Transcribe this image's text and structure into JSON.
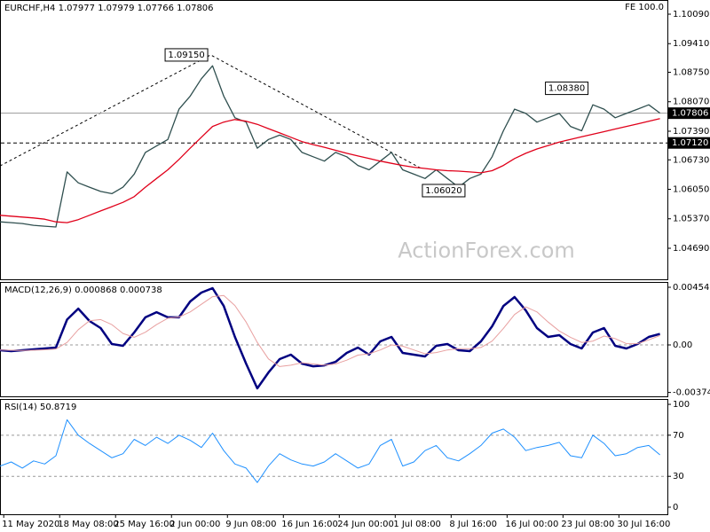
{
  "chart_data": [
    {
      "type": "line",
      "title": "EURCHF,H4 1.07977 1.07979 1.07766 1.07806",
      "subtitle": "FE 100.0",
      "watermark": "ActionForex.com",
      "xlim": [
        0,
        358
      ],
      "x": [
        0,
        6,
        12,
        18,
        24,
        30,
        36,
        42,
        48,
        54,
        60,
        66,
        72,
        78,
        84,
        90,
        96,
        102,
        108,
        114,
        120,
        126,
        132,
        138,
        144,
        150,
        156,
        162,
        168,
        174,
        180,
        186,
        192,
        198,
        204,
        210,
        216,
        222,
        228,
        234,
        240,
        246,
        252,
        258,
        264,
        270,
        276,
        282,
        288,
        294,
        300,
        306,
        312,
        318,
        324,
        330,
        336,
        342,
        348,
        354
      ],
      "ylim": [
        1.03974,
        1.10417
      ],
      "yticks": [
        {
          "value": 1.1009,
          "label": "1.10090"
        },
        {
          "value": 1.0941,
          "label": "1.09410"
        },
        {
          "value": 1.0875,
          "label": "1.08750"
        },
        {
          "value": 1.0807,
          "label": "1.08070"
        },
        {
          "value": 1.0739,
          "label": "1.07390"
        },
        {
          "value": 1.0673,
          "label": "1.06730"
        },
        {
          "value": 1.0605,
          "label": "1.06050"
        },
        {
          "value": 1.0537,
          "label": "1.05370"
        },
        {
          "value": 1.0469,
          "label": "1.04690"
        }
      ],
      "series": [
        {
          "color": "#2f4f4f",
          "values": [
            1.053,
            1.0528,
            1.0526,
            1.0522,
            1.052,
            1.0518,
            1.0645,
            1.062,
            1.061,
            1.06,
            1.0595,
            1.061,
            1.064,
            1.069,
            1.0705,
            1.072,
            1.079,
            1.082,
            1.086,
            1.089,
            1.082,
            1.077,
            1.076,
            1.07,
            1.072,
            1.073,
            1.072,
            1.069,
            1.068,
            1.067,
            1.069,
            1.068,
            1.066,
            1.065,
            1.067,
            1.069,
            1.065,
            1.064,
            1.063,
            1.065,
            1.063,
            1.061,
            1.063,
            1.064,
            1.068,
            1.074,
            1.079,
            1.078,
            1.076,
            1.077,
            1.078,
            1.075,
            1.074,
            1.08,
            1.079,
            1.077,
            1.078,
            1.079,
            1.08,
            1.0781
          ]
        },
        {
          "color": "#e0001a",
          "values": [
            1.0545,
            1.0543,
            1.0541,
            1.0539,
            1.0536,
            1.053,
            1.0528,
            1.0535,
            1.0545,
            1.0555,
            1.0565,
            1.0575,
            1.0588,
            1.061,
            1.063,
            1.065,
            1.0674,
            1.07,
            1.0725,
            1.075,
            1.076,
            1.0766,
            1.0762,
            1.0755,
            1.0745,
            1.0735,
            1.0725,
            1.0715,
            1.0708,
            1.0702,
            1.0695,
            1.0688,
            1.0682,
            1.0676,
            1.067,
            1.0665,
            1.066,
            1.0656,
            1.0653,
            1.065,
            1.0648,
            1.0647,
            1.0645,
            1.0643,
            1.0648,
            1.066,
            1.0676,
            1.0688,
            1.0698,
            1.0706,
            1.0714,
            1.072,
            1.0726,
            1.0732,
            1.0738,
            1.0744,
            1.075,
            1.0756,
            1.0762,
            1.0768
          ]
        }
      ],
      "hlines": [
        {
          "value": 1.07806,
          "label": "1.07806",
          "style": "solid"
        },
        {
          "value": 1.0712,
          "label": "1.07120",
          "style": "dashed"
        }
      ],
      "annotations": [
        {
          "label": "1.09150",
          "x": 100,
          "y": 1.0915
        },
        {
          "label": "1.08380",
          "x": 304,
          "y": 1.0838
        },
        {
          "label": "1.06020",
          "x": 238,
          "y": 1.0602
        }
      ],
      "trendlines": [
        {
          "x": [
            0,
            113,
            226
          ],
          "y": [
            1.0659,
            1.0915,
            1.0653
          ]
        }
      ]
    },
    {
      "type": "line",
      "label": "MACD(12,26,9) 0.000868 0.000738",
      "ylim": [
        -0.00405,
        0.00496
      ],
      "yticks": [
        0.00454,
        {
          "value": 0,
          "label": "0.00"
        },
        -0.003745
      ],
      "levels": [
        0
      ],
      "series": [
        {
          "color": "#000080",
          "width": 2.5,
          "values": [
            -0.00042,
            -0.00049,
            -0.00042,
            -0.00035,
            -0.00028,
            -0.00021,
            0.002,
            0.00286,
            0.00189,
            0.00133,
            7e-05,
            -7e-05,
            0.00098,
            0.00217,
            0.00258,
            0.00217,
            0.00217,
            0.00342,
            0.00412,
            0.00447,
            0.00307,
            0.00063,
            -0.00147,
            -0.00342,
            -0.00217,
            -0.00112,
            -0.00077,
            -0.00147,
            -0.00168,
            -0.00161,
            -0.00133,
            -0.00063,
            -0.00021,
            -0.00077,
            0.00028,
            0.00063,
            -0.00063,
            -0.00077,
            -0.00091,
            -7e-05,
            7e-05,
            -0.00042,
            -0.00049,
            0.00028,
            0.00147,
            0.00307,
            0.00377,
            0.00272,
            0.00133,
            0.00063,
            0.00077,
            7e-05,
            -0.00028,
            0.00098,
            0.00133,
            -7e-05,
            -0.00028,
            7e-05,
            0.00063,
            0.000868
          ]
        },
        {
          "color": "#e8a0a0",
          "width": 1,
          "values": [
            -0.0004,
            -0.00042,
            -0.00044,
            -0.00042,
            -0.00038,
            -0.00032,
            0.0002,
            0.0012,
            0.0019,
            0.002,
            0.0016,
            0.0009,
            0.0006,
            0.001,
            0.0016,
            0.0021,
            0.0022,
            0.0026,
            0.0032,
            0.0038,
            0.0039,
            0.0031,
            0.0018,
            0.0002,
            -0.0011,
            -0.0017,
            -0.0016,
            -0.0014,
            -0.0015,
            -0.0016,
            -0.0015,
            -0.0012,
            -0.0008,
            -0.0007,
            -0.0004,
            0,
            -0.0001,
            -0.0004,
            -0.0007,
            -0.0006,
            -0.0004,
            -0.0003,
            -0.0003,
            -0.0002,
            0.0003,
            0.0013,
            0.0024,
            0.003,
            0.0026,
            0.0018,
            0.0011,
            0.0006,
            0.0002,
            0.0003,
            0.0007,
            0.0005,
            0.0001,
            0.0001,
            0.0004,
            0.000738
          ]
        }
      ]
    },
    {
      "type": "line",
      "label": "RSI(14) 50.8719",
      "ylim": [
        -6.9,
        105.2
      ],
      "yticks": [
        100,
        70,
        30,
        0
      ],
      "levels": [
        70,
        30
      ],
      "xticks": [
        {
          "value": 2,
          "label": "11 May 2020"
        },
        {
          "value": 32,
          "label": "18 May 08:00"
        },
        {
          "value": 62,
          "label": "25 May 16:00"
        },
        {
          "value": 92,
          "label": "2 Jun 00:00"
        },
        {
          "value": 122,
          "label": "9 Jun 08:00"
        },
        {
          "value": 152,
          "label": "16 Jun 16:00"
        },
        {
          "value": 182,
          "label": "24 Jun 00:00"
        },
        {
          "value": 212,
          "label": "1 Jul 08:00"
        },
        {
          "value": 242,
          "label": "8 Jul 16:00"
        },
        {
          "value": 272,
          "label": "16 Jul 00:00"
        },
        {
          "value": 302,
          "label": "23 Jul 08:00"
        },
        {
          "value": 332,
          "label": "30 Jul 16:00"
        }
      ],
      "series": [
        {
          "color": "#1e90ff",
          "width": 1,
          "values": [
            40,
            44,
            38,
            45,
            42,
            50,
            85,
            70,
            62,
            55,
            48,
            52,
            66,
            60,
            68,
            62,
            70,
            65,
            58,
            72,
            55,
            42,
            38,
            24,
            40,
            52,
            46,
            42,
            40,
            44,
            52,
            45,
            38,
            42,
            60,
            66,
            40,
            44,
            55,
            60,
            48,
            45,
            52,
            60,
            72,
            76,
            68,
            55,
            58,
            60,
            63,
            50,
            48,
            70,
            62,
            50,
            52,
            58,
            60,
            50.8719
          ]
        }
      ]
    }
  ]
}
